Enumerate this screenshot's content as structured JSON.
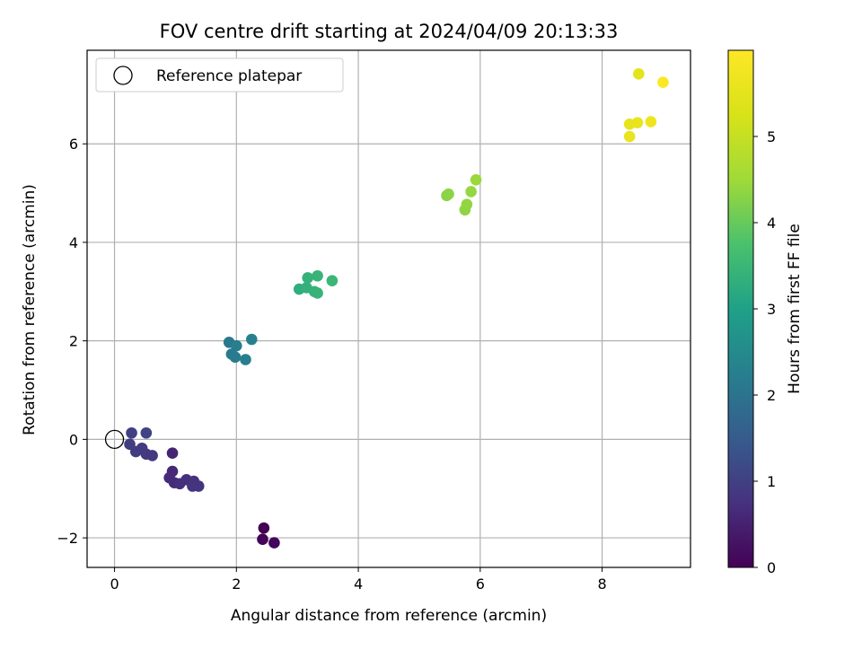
{
  "chart_data": {
    "type": "scatter",
    "title": "FOV centre drift starting at 2024/04/09 20:13:33",
    "xlabel": "Angular distance from reference (arcmin)",
    "ylabel": "Rotation from reference (arcmin)",
    "xlim": [
      -0.45,
      9.45
    ],
    "ylim": [
      -2.6,
      7.9
    ],
    "xticks": [
      0,
      2,
      4,
      6,
      8
    ],
    "yticks": [
      -2,
      0,
      2,
      4,
      6
    ],
    "xtick_labels": [
      "0",
      "2",
      "4",
      "6",
      "8"
    ],
    "ytick_labels": [
      "−2",
      "0",
      "2",
      "4",
      "6"
    ],
    "grid": true,
    "legend_position": "top-left",
    "legend": {
      "label": "Reference platepar",
      "marker": "hollow-circle"
    },
    "reference_point": {
      "x": 0,
      "y": 0
    },
    "colormap": "viridis",
    "colorbar": {
      "label": "Hours from first FF file",
      "range": [
        0,
        6.0
      ],
      "ticks": [
        0,
        1,
        2,
        3,
        4,
        5
      ],
      "tick_labels": [
        "0",
        "1",
        "2",
        "3",
        "4",
        "5"
      ]
    },
    "points": [
      {
        "x": 2.45,
        "y": -1.8,
        "c": 0.0
      },
      {
        "x": 2.43,
        "y": -2.03,
        "c": 0.05
      },
      {
        "x": 2.62,
        "y": -2.1,
        "c": 0.1
      },
      {
        "x": 0.95,
        "y": -0.28,
        "c": 0.55
      },
      {
        "x": 0.95,
        "y": -0.65,
        "c": 0.6
      },
      {
        "x": 0.9,
        "y": -0.78,
        "c": 0.62
      },
      {
        "x": 0.98,
        "y": -0.88,
        "c": 0.65
      },
      {
        "x": 1.07,
        "y": -0.9,
        "c": 0.7
      },
      {
        "x": 1.18,
        "y": -0.82,
        "c": 0.72
      },
      {
        "x": 1.3,
        "y": -0.85,
        "c": 0.75
      },
      {
        "x": 1.28,
        "y": -0.95,
        "c": 0.78
      },
      {
        "x": 1.38,
        "y": -0.95,
        "c": 0.8
      },
      {
        "x": 0.62,
        "y": -0.33,
        "c": 0.85
      },
      {
        "x": 0.52,
        "y": -0.3,
        "c": 0.88
      },
      {
        "x": 0.45,
        "y": -0.18,
        "c": 0.9
      },
      {
        "x": 0.35,
        "y": -0.25,
        "c": 0.93
      },
      {
        "x": 0.25,
        "y": -0.1,
        "c": 0.96
      },
      {
        "x": 0.28,
        "y": 0.13,
        "c": 1.0
      },
      {
        "x": 0.52,
        "y": 0.13,
        "c": 1.05
      },
      {
        "x": 1.88,
        "y": 1.97,
        "c": 2.1
      },
      {
        "x": 1.92,
        "y": 1.73,
        "c": 2.15
      },
      {
        "x": 1.98,
        "y": 1.67,
        "c": 2.18
      },
      {
        "x": 2.0,
        "y": 1.9,
        "c": 2.2
      },
      {
        "x": 2.15,
        "y": 1.62,
        "c": 2.25
      },
      {
        "x": 2.25,
        "y": 2.03,
        "c": 2.3
      },
      {
        "x": 3.03,
        "y": 3.05,
        "c": 3.3
      },
      {
        "x": 3.15,
        "y": 3.08,
        "c": 3.35
      },
      {
        "x": 3.17,
        "y": 3.28,
        "c": 3.38
      },
      {
        "x": 3.28,
        "y": 3.0,
        "c": 3.4
      },
      {
        "x": 3.33,
        "y": 2.97,
        "c": 3.42
      },
      {
        "x": 3.33,
        "y": 3.32,
        "c": 3.45
      },
      {
        "x": 3.57,
        "y": 3.22,
        "c": 3.5
      },
      {
        "x": 5.45,
        "y": 4.95,
        "c": 4.3
      },
      {
        "x": 5.48,
        "y": 4.98,
        "c": 4.32
      },
      {
        "x": 5.75,
        "y": 4.66,
        "c": 4.35
      },
      {
        "x": 5.78,
        "y": 4.77,
        "c": 4.38
      },
      {
        "x": 5.85,
        "y": 5.03,
        "c": 4.4
      },
      {
        "x": 5.93,
        "y": 5.27,
        "c": 4.45
      },
      {
        "x": 8.6,
        "y": 7.42,
        "c": 5.5
      },
      {
        "x": 8.45,
        "y": 6.4,
        "c": 5.55
      },
      {
        "x": 8.45,
        "y": 6.15,
        "c": 5.58
      },
      {
        "x": 8.58,
        "y": 6.43,
        "c": 5.62
      },
      {
        "x": 8.8,
        "y": 6.45,
        "c": 5.7
      },
      {
        "x": 9.0,
        "y": 7.25,
        "c": 5.98
      }
    ]
  }
}
